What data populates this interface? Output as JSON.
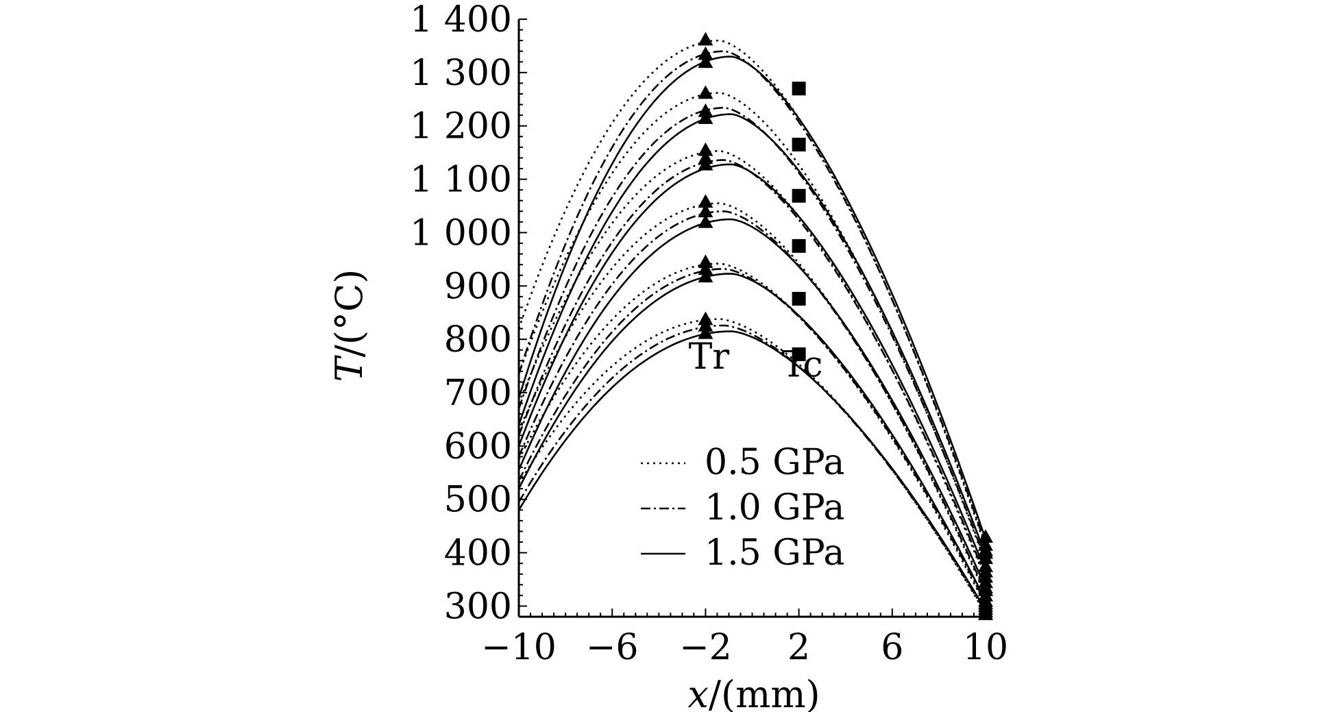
{
  "chart_data": {
    "type": "line",
    "xlabel_var": "x",
    "xlabel_unit": "/(mm)",
    "ylabel_var": "T",
    "ylabel_unit": "/(°C)",
    "xlim": [
      -10,
      10
    ],
    "ylim": [
      280,
      1400
    ],
    "xticks": [
      -10,
      -6,
      -2,
      2,
      6,
      10
    ],
    "xtick_labels": [
      "−10",
      "−6",
      "−2",
      "2",
      "6",
      "10"
    ],
    "yticks": [
      300,
      400,
      500,
      600,
      700,
      800,
      900,
      1000,
      1100,
      1200,
      1300,
      1400
    ],
    "ytick_labels": [
      "300",
      "400",
      "500",
      "600",
      "700",
      "800",
      "900",
      "1 000",
      "1 100",
      "1 200",
      "1 300",
      "1 400"
    ],
    "marker_labels": [
      {
        "text": "Tr",
        "x": -2.0,
        "y": 745
      },
      {
        "text": "Tc",
        "x": 2.0,
        "y": 730
      }
    ],
    "legend": [
      {
        "label": "0.5 GPa",
        "style": "dotted"
      },
      {
        "label": "1.0 GPa",
        "style": "dashdot"
      },
      {
        "label": "1.5 GPa",
        "style": "solid"
      }
    ],
    "families": [
      {
        "name": "0.5 GPa",
        "style": "dotted",
        "curves": [
          {
            "y_left": 820,
            "peak_x": -1.4,
            "peak_y": 1360,
            "y_right": 410,
            "tr": 1362,
            "tc": 1270,
            "end": 415
          },
          {
            "y_left": 735,
            "peak_x": -1.4,
            "peak_y": 1262,
            "y_right": 380,
            "tr": 1262,
            "tc": 1165,
            "end": 390
          },
          {
            "y_left": 680,
            "peak_x": -1.4,
            "peak_y": 1153,
            "y_right": 350,
            "tr": 1155,
            "tc": 1069,
            "end": 355
          },
          {
            "y_left": 630,
            "peak_x": -1.4,
            "peak_y": 1055,
            "y_right": 320,
            "tr": 1058,
            "tc": 975,
            "end": 330
          },
          {
            "y_left": 575,
            "peak_x": -1.4,
            "peak_y": 942,
            "y_right": 300,
            "tr": 945,
            "tc": 876,
            "end": 305
          },
          {
            "y_left": 530,
            "peak_x": -1.4,
            "peak_y": 838,
            "y_right": 285,
            "tr": 838,
            "tc": 772,
            "end": 290
          }
        ]
      },
      {
        "name": "1.0 GPa",
        "style": "dashdot",
        "curves": [
          {
            "y_left": 735,
            "peak_x": -1.2,
            "peak_y": 1340,
            "y_right": 415,
            "tr": 1335,
            "tc": 1270,
            "end": 405
          },
          {
            "y_left": 670,
            "peak_x": -1.2,
            "peak_y": 1234,
            "y_right": 385,
            "tr": 1228,
            "tc": 1165,
            "end": 375
          },
          {
            "y_left": 620,
            "peak_x": -1.2,
            "peak_y": 1136,
            "y_right": 355,
            "tr": 1140,
            "tc": 1069,
            "end": 345
          },
          {
            "y_left": 580,
            "peak_x": -1.2,
            "peak_y": 1040,
            "y_right": 325,
            "tr": 1040,
            "tc": 975,
            "end": 320
          },
          {
            "y_left": 535,
            "peak_x": -1.2,
            "peak_y": 932,
            "y_right": 305,
            "tr": 932,
            "tc": 876,
            "end": 300
          },
          {
            "y_left": 495,
            "peak_x": -1.2,
            "peak_y": 826,
            "y_right": 288,
            "tr": 826,
            "tc": 772,
            "end": 285
          }
        ]
      },
      {
        "name": "1.5 GPa",
        "style": "solid",
        "curves": [
          {
            "y_left": 690,
            "peak_x": -0.9,
            "peak_y": 1330,
            "y_right": 425,
            "tr": 1320,
            "tc": 1270,
            "end": 430
          },
          {
            "y_left": 640,
            "peak_x": -0.9,
            "peak_y": 1222,
            "y_right": 395,
            "tr": 1215,
            "tc": 1165,
            "end": 400
          },
          {
            "y_left": 600,
            "peak_x": -0.9,
            "peak_y": 1128,
            "y_right": 365,
            "tr": 1128,
            "tc": 1069,
            "end": 365
          },
          {
            "y_left": 555,
            "peak_x": -0.9,
            "peak_y": 1025,
            "y_right": 335,
            "tr": 1020,
            "tc": 975,
            "end": 335
          },
          {
            "y_left": 520,
            "peak_x": -0.9,
            "peak_y": 923,
            "y_right": 310,
            "tr": 918,
            "tc": 876,
            "end": 310
          },
          {
            "y_left": 480,
            "peak_x": -0.9,
            "peak_y": 815,
            "y_right": 292,
            "tr": 812,
            "tc": 772,
            "end": 295
          }
        ]
      }
    ],
    "tr_x": -2.0,
    "tc_x": 2.0,
    "end_x": 10.0
  }
}
